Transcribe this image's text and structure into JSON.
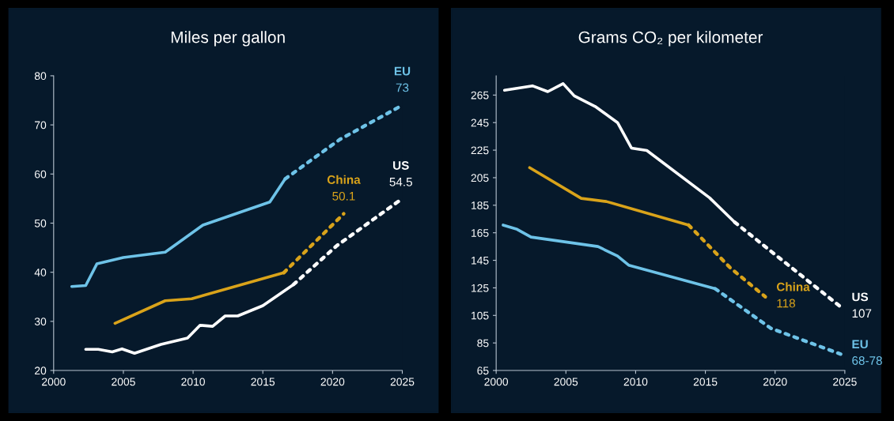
{
  "chart_data": [
    {
      "type": "line",
      "title": "Miles per gallon",
      "xlim": [
        2000,
        2025
      ],
      "xticks": [
        2000,
        2005,
        2010,
        2015,
        2020,
        2025
      ],
      "ylim": [
        20,
        80
      ],
      "yticks": [
        20,
        30,
        40,
        50,
        60,
        70,
        80
      ],
      "grid": false,
      "legend": false,
      "marker": "none",
      "series": [
        {
          "color": "#6ec3e8",
          "line_style": "solid",
          "x": [
            2001.3,
            2002.3,
            2003.1,
            2005,
            2008,
            2010.7,
            2015.5,
            2016.6
          ],
          "values": [
            37.1,
            37.3,
            41.7,
            43,
            44.1,
            49.6,
            54.3,
            59
          ]
        },
        {
          "name": "EU",
          "color": "#6ec3e8",
          "line_style": "dotted",
          "x": [
            2016.6,
            2020.5,
            2025
          ],
          "values": [
            59,
            67,
            74
          ]
        },
        {
          "color": "#d9a31a",
          "line_style": "solid",
          "x": [
            2004.4,
            2008,
            2009.9,
            2016.5
          ],
          "values": [
            29.6,
            34.2,
            34.6,
            39.9
          ]
        },
        {
          "name": "China",
          "color": "#d9a31a",
          "line_style": "dotted",
          "x": [
            2016.5,
            2020.8
          ],
          "values": [
            39.9,
            51.9
          ]
        },
        {
          "color": "#ffffff",
          "line_style": "solid",
          "x": [
            2002.3,
            2003.2,
            2004.2,
            2004.9,
            2005.8,
            2007.7,
            2009.6,
            2010.5,
            2011.4,
            2012.3,
            2013.2,
            2015,
            2017.2
          ],
          "values": [
            24.3,
            24.3,
            23.8,
            24.4,
            23.5,
            25.3,
            26.6,
            29.2,
            29,
            31.1,
            31.1,
            33.2,
            37.5
          ]
        },
        {
          "name": "US",
          "color": "#ffffff",
          "line_style": "dotted",
          "x": [
            2017.2,
            2020.3,
            2024.9
          ],
          "values": [
            37.5,
            45.4,
            54.8
          ]
        }
      ],
      "annotations": [
        {
          "text": "73",
          "x": 2025,
          "y": 74
        },
        {
          "text": "50.1",
          "x": 2020.8,
          "y": 51.9
        },
        {
          "text": "54.5",
          "x": 2024.9,
          "y": 54.8
        }
      ]
    },
    {
      "type": "line",
      "title": "Grams CO₂ per kilometer",
      "xlim": [
        2000,
        2025
      ],
      "xticks": [
        2000,
        2005,
        2010,
        2015,
        2020,
        2025
      ],
      "ylim": [
        65,
        279
      ],
      "yticks": [
        65,
        85,
        105,
        125,
        145,
        165,
        185,
        205,
        225,
        245,
        265
      ],
      "grid": false,
      "legend": false,
      "marker": "none",
      "series": [
        {
          "color": "#ffffff",
          "line_style": "solid",
          "x": [
            2000.6,
            2002.6,
            2003.7,
            2004.8,
            2005.6,
            2007.1,
            2008.7,
            2009.7,
            2010.8,
            2015.3,
            2017.1
          ],
          "values": [
            268.5,
            271.7,
            267.5,
            273.3,
            264.4,
            256.7,
            245,
            226.5,
            224.8,
            190.4,
            172.7
          ]
        },
        {
          "name": "US",
          "color": "#ffffff",
          "line_style": "dotted",
          "x": [
            2017.1,
            2020.7,
            2024.7
          ],
          "values": [
            172.7,
            143.5,
            111.2
          ]
        },
        {
          "color": "#d9a31a",
          "line_style": "solid",
          "x": [
            2002.4,
            2006.1,
            2007.9,
            2013.8
          ],
          "values": [
            212.3,
            190,
            187.7,
            170.6
          ]
        },
        {
          "name": "China",
          "color": "#d9a31a",
          "line_style": "dotted",
          "x": [
            2013.8,
            2016.8,
            2019.3
          ],
          "values": [
            170.6,
            139.4,
            118.5
          ]
        },
        {
          "color": "#6ec3e8",
          "line_style": "solid",
          "x": [
            2000.5,
            2001.5,
            2002.5,
            2007.3,
            2008.7,
            2009.5,
            2015.7
          ],
          "values": [
            170.6,
            167.5,
            161.9,
            155,
            148.1,
            141.5,
            124.4
          ]
        },
        {
          "name": "EU",
          "color": "#6ec3e8",
          "line_style": "dotted",
          "x": [
            2015.7,
            2019.7,
            2024.7
          ],
          "values": [
            124.4,
            95.6,
            76.9
          ]
        }
      ],
      "annotations": [
        {
          "text": "107",
          "x": 2024.7,
          "y": 111.2
        },
        {
          "text": "118",
          "x": 2019.3,
          "y": 118.5
        },
        {
          "text": "68-78",
          "x": 2024.7,
          "y": 76.9
        }
      ]
    }
  ]
}
